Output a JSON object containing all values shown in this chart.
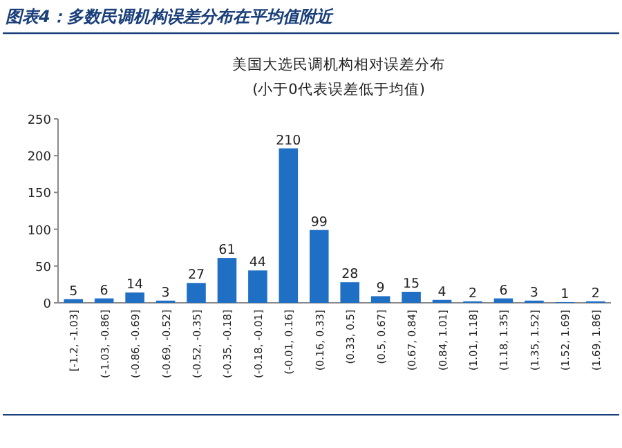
{
  "chart_data": {
    "type": "bar",
    "title": "图表4：多数民调机构误差分布在平均值附近",
    "subtitle": "美国大选民调机构相对误差分布",
    "annotations": [
      "(小于0代表误差低于均值)"
    ],
    "categories": [
      "[-1.2, -1.03]",
      "(-1.03, -0.86]",
      "(-0.86, -0.69]",
      "(-0.69, -0.52]",
      "(-0.52, -0.35]",
      "(-0.35, -0.18]",
      "(-0.18, -0.01]",
      "(-0.01, 0.16]",
      "(0.16, 0.33]",
      "(0.33, 0.5]",
      "(0.5, 0.67]",
      "(0.67, 0.84]",
      "(0.84, 1.01]",
      "(1.01, 1.18]",
      "(1.18, 1.35]",
      "(1.35, 1.52]",
      "(1.52, 1.69]",
      "(1.69, 1.86]"
    ],
    "values": [
      5,
      6,
      14,
      3,
      27,
      61,
      44,
      210,
      99,
      28,
      9,
      15,
      4,
      2,
      6,
      3,
      1,
      2
    ],
    "color": "#1f6fc5",
    "ylim": [
      0,
      250
    ],
    "yticks": [
      0,
      50,
      100,
      150,
      200,
      250
    ],
    "data_labels": true
  }
}
